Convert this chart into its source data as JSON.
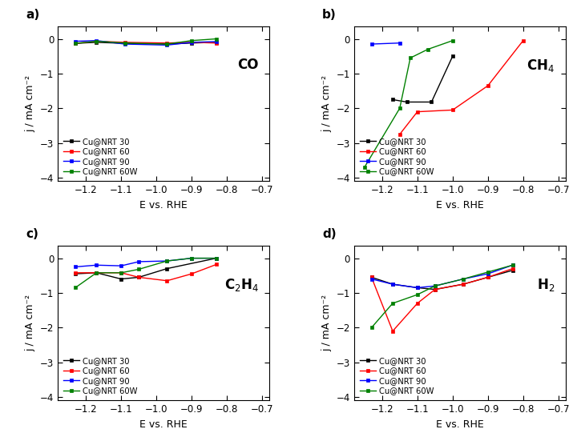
{
  "colors": {
    "black": "#000000",
    "red": "#ff0000",
    "blue": "#0000ff",
    "green": "#008000"
  },
  "legend_labels": [
    "Cu@NRT 30",
    "Cu@NRT 60",
    "Cu@NRT 90",
    "Cu@NRT 60W"
  ],
  "xlabel": "E vs. RHE",
  "ylabel": "j / mA cm⁻²",
  "xlim": [
    -1.28,
    -0.68
  ],
  "ylim": [
    -4.1,
    0.35
  ],
  "xticks": [
    -1.2,
    -1.1,
    -1.0,
    -0.9,
    -0.8,
    -0.7
  ],
  "yticks": [
    0,
    -1,
    -2,
    -3,
    -4
  ],
  "CO": {
    "black_x": [
      -1.23,
      -1.17,
      -1.09,
      -0.97,
      -0.9,
      -0.83
    ],
    "black_y": [
      -0.13,
      -0.1,
      -0.13,
      -0.15,
      -0.12,
      -0.1
    ],
    "red_x": [
      -1.23,
      -1.17,
      -1.09,
      -0.97,
      -0.9,
      -0.83
    ],
    "red_y": [
      -0.13,
      -0.07,
      -0.1,
      -0.12,
      -0.1,
      -0.12
    ],
    "blue_x": [
      -1.23,
      -1.17,
      -1.09,
      -0.97,
      -0.9,
      -0.83
    ],
    "blue_y": [
      -0.07,
      -0.05,
      -0.15,
      -0.18,
      -0.1,
      -0.08
    ],
    "green_x": [
      -1.23,
      -1.17,
      -1.09,
      -0.97,
      -0.9,
      -0.83
    ],
    "green_y": [
      -0.13,
      -0.07,
      -0.12,
      -0.15,
      -0.05,
      0.0
    ]
  },
  "CH4": {
    "black_x": [
      -1.17,
      -1.13,
      -1.06,
      -1.0
    ],
    "black_y": [
      -1.75,
      -1.82,
      -1.82,
      -0.5
    ],
    "red_x": [
      -1.15,
      -1.1,
      -1.0,
      -0.9,
      -0.8
    ],
    "red_y": [
      -2.75,
      -2.1,
      -2.05,
      -1.35,
      -0.05
    ],
    "blue_x": [
      -1.23,
      -1.15
    ],
    "blue_y": [
      -0.15,
      -0.12
    ],
    "green_x": [
      -1.25,
      -1.15,
      -1.12,
      -1.07,
      -1.0
    ],
    "green_y": [
      -3.7,
      -2.0,
      -0.55,
      -0.3,
      -0.05
    ]
  },
  "C2H4": {
    "black_x": [
      -1.23,
      -1.17,
      -1.1,
      -1.05,
      -0.97,
      -0.83
    ],
    "black_y": [
      -0.45,
      -0.42,
      -0.6,
      -0.55,
      -0.3,
      0.0
    ],
    "red_x": [
      -1.23,
      -1.17,
      -1.1,
      -1.05,
      -0.97,
      -0.9,
      -0.83
    ],
    "red_y": [
      -0.42,
      -0.42,
      -0.42,
      -0.55,
      -0.65,
      -0.45,
      -0.18
    ],
    "blue_x": [
      -1.23,
      -1.17,
      -1.1,
      -1.05,
      -0.97,
      -0.9,
      -0.83
    ],
    "blue_y": [
      -0.25,
      -0.2,
      -0.22,
      -0.1,
      -0.08,
      0.0,
      0.0
    ],
    "green_x": [
      -1.23,
      -1.17,
      -1.1,
      -1.05,
      -0.97,
      -0.9,
      -0.83
    ],
    "green_y": [
      -0.85,
      -0.42,
      -0.42,
      -0.32,
      -0.08,
      0.0,
      0.0
    ]
  },
  "H2": {
    "black_x": [
      -1.23,
      -1.17,
      -1.1,
      -1.05,
      -0.97,
      -0.9,
      -0.83
    ],
    "black_y": [
      -0.55,
      -0.75,
      -0.85,
      -0.9,
      -0.75,
      -0.55,
      -0.35
    ],
    "red_x": [
      -1.23,
      -1.17,
      -1.1,
      -1.05,
      -0.97,
      -0.9,
      -0.83
    ],
    "red_y": [
      -0.55,
      -2.1,
      -1.3,
      -0.9,
      -0.75,
      -0.55,
      -0.3
    ],
    "blue_x": [
      -1.23,
      -1.17,
      -1.1,
      -1.05,
      -0.97,
      -0.9,
      -0.83
    ],
    "blue_y": [
      -0.6,
      -0.75,
      -0.85,
      -0.8,
      -0.6,
      -0.45,
      -0.2
    ],
    "green_x": [
      -1.23,
      -1.17,
      -1.1,
      -1.05,
      -0.97,
      -0.9,
      -0.83
    ],
    "green_y": [
      -2.0,
      -1.3,
      -1.05,
      -0.8,
      -0.6,
      -0.4,
      -0.2
    ]
  }
}
